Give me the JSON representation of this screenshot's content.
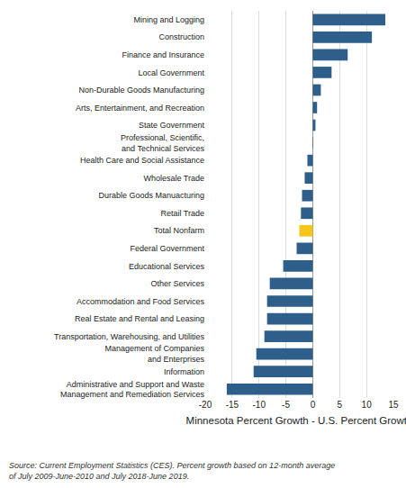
{
  "chart_data": {
    "type": "bar",
    "orientation": "horizontal",
    "categories": [
      "Mining and Logging",
      "Construction",
      "Finance and Insurance",
      "Local Government",
      "Non-Durable Goods Manufacturing",
      "Arts, Entertainment, and Recreation",
      "State Government",
      "Professional, Scientific,\nand Technical Services",
      "Health Care and Social Assistance",
      "Wholesale Trade",
      "Durable Goods Manuacturing",
      "Retail Trade",
      "Total Nonfarm",
      "Federal Government",
      "Educational Services",
      "Other Services",
      "Accommodation and Food Services",
      "Real Estate and Rental and Leasing",
      "Transportation, Warehousing, and Utilities",
      "Management of Companies\nand Enterprises",
      "Information",
      "Administrative and Support and Waste\nManagement and Remediation Services"
    ],
    "values": [
      13.5,
      11.0,
      6.5,
      3.5,
      1.5,
      0.8,
      0.5,
      0.1,
      -1.0,
      -1.5,
      -2.0,
      -2.2,
      -2.5,
      -3.0,
      -5.5,
      -8.0,
      -8.5,
      -8.5,
      -9.0,
      -10.5,
      -11.0,
      -16.0
    ],
    "colors": [
      "#2d5f8a",
      "#2d5f8a",
      "#2d5f8a",
      "#2d5f8a",
      "#2d5f8a",
      "#2d5f8a",
      "#2d5f8a",
      "#2d5f8a",
      "#2d5f8a",
      "#2d5f8a",
      "#2d5f8a",
      "#2d5f8a",
      "#f5c518",
      "#2d5f8a",
      "#2d5f8a",
      "#2d5f8a",
      "#2d5f8a",
      "#2d5f8a",
      "#2d5f8a",
      "#2d5f8a",
      "#2d5f8a",
      "#2d5f8a"
    ],
    "xlabel": "Minnesota Percent Growth - U.S. Percent Growth",
    "xlim": [
      -20,
      15
    ],
    "xticks": [
      -20,
      -15,
      -10,
      -5,
      0,
      5,
      10,
      15
    ],
    "grid": true,
    "annotations": [
      "Source: Current Employment Statistics (CES). Percent growth based on 12-month average\nof July 2009-June-2010 and July 2018-June 2019."
    ]
  }
}
